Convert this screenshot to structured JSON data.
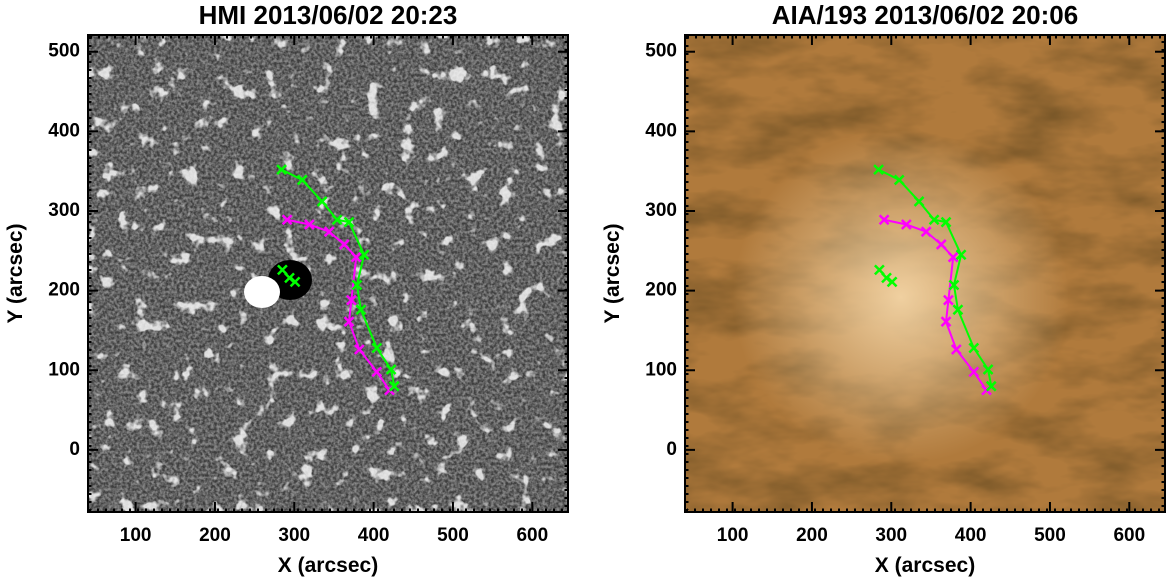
{
  "chart_data": [
    {
      "type": "line",
      "title": "HMI 2013/06/02 20:23",
      "x_label": "X (arcsec)",
      "y_label": "Y (arcsec)",
      "xlim": [
        40,
        645
      ],
      "ylim": [
        -78,
        521
      ],
      "xticks": [
        100,
        200,
        300,
        400,
        500,
        600
      ],
      "yticks": [
        0,
        100,
        200,
        300,
        400,
        500
      ],
      "series": [
        {
          "color": "#ff00ff",
          "x": [
            291,
            319,
            344,
            363,
            378,
            372,
            369,
            382,
            404,
            420
          ],
          "values": [
            289,
            283,
            274,
            258,
            242,
            188,
            161,
            126,
            98,
            75
          ]
        },
        {
          "color": "#00ff00",
          "x": [
            284,
            310,
            335,
            354,
            369,
            388,
            379,
            384,
            404,
            422,
            426,
            null,
            285,
            294,
            301
          ],
          "values": [
            352,
            339,
            312,
            289,
            286,
            245,
            207,
            176,
            128,
            101,
            80,
            null,
            226,
            216,
            211
          ]
        }
      ]
    },
    {
      "type": "line",
      "title": "AIA/193 2013/06/02 20:06",
      "x_label": "X (arcsec)",
      "y_label": "Y (arcsec)",
      "xlim": [
        40,
        645
      ],
      "ylim": [
        -78,
        521
      ],
      "xticks": [
        100,
        200,
        300,
        400,
        500,
        600
      ],
      "yticks": [
        0,
        100,
        200,
        300,
        400,
        500
      ],
      "series": [
        {
          "color": "#ff00ff",
          "x": [
            291,
            319,
            344,
            363,
            378,
            372,
            369,
            382,
            404,
            420
          ],
          "values": [
            289,
            283,
            274,
            258,
            242,
            188,
            161,
            126,
            98,
            75
          ]
        },
        {
          "color": "#00ff00",
          "x": [
            284,
            310,
            335,
            354,
            369,
            388,
            379,
            384,
            404,
            422,
            426,
            null,
            285,
            294,
            301
          ],
          "values": [
            352,
            339,
            312,
            289,
            286,
            245,
            207,
            176,
            128,
            101,
            80,
            null,
            226,
            216,
            211
          ]
        }
      ]
    }
  ]
}
